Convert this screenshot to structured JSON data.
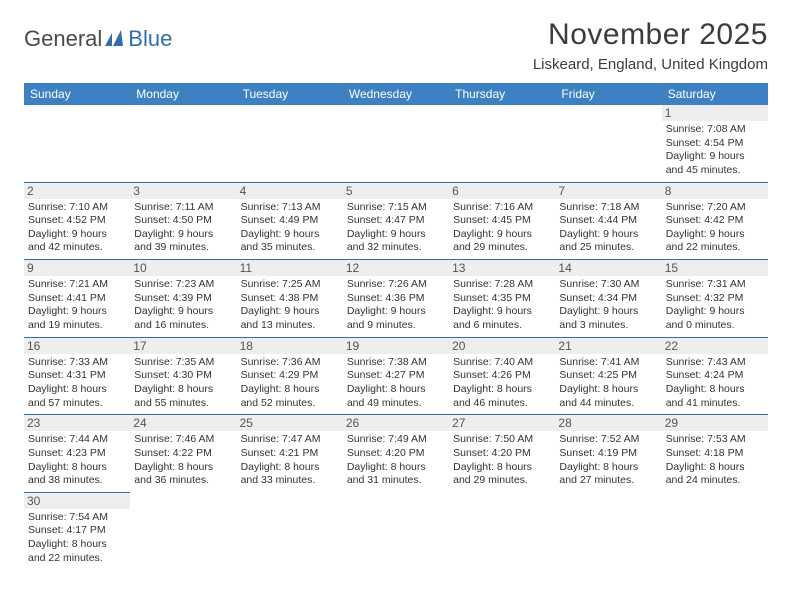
{
  "logo": {
    "part1": "General",
    "part2": "Blue"
  },
  "title": "November 2025",
  "location": "Liskeard, England, United Kingdom",
  "colors": {
    "header_bg": "#3d81c2",
    "header_text": "#ffffff",
    "border": "#2f6fa8",
    "daynum_bg": "#eeeeee",
    "text": "#333333"
  },
  "weekdays": [
    "Sunday",
    "Monday",
    "Tuesday",
    "Wednesday",
    "Thursday",
    "Friday",
    "Saturday"
  ],
  "weeks": [
    [
      {
        "n": "",
        "sr": "",
        "ss": "",
        "dl1": "",
        "dl2": ""
      },
      {
        "n": "",
        "sr": "",
        "ss": "",
        "dl1": "",
        "dl2": ""
      },
      {
        "n": "",
        "sr": "",
        "ss": "",
        "dl1": "",
        "dl2": ""
      },
      {
        "n": "",
        "sr": "",
        "ss": "",
        "dl1": "",
        "dl2": ""
      },
      {
        "n": "",
        "sr": "",
        "ss": "",
        "dl1": "",
        "dl2": ""
      },
      {
        "n": "",
        "sr": "",
        "ss": "",
        "dl1": "",
        "dl2": ""
      },
      {
        "n": "1",
        "sr": "Sunrise: 7:08 AM",
        "ss": "Sunset: 4:54 PM",
        "dl1": "Daylight: 9 hours",
        "dl2": "and 45 minutes."
      }
    ],
    [
      {
        "n": "2",
        "sr": "Sunrise: 7:10 AM",
        "ss": "Sunset: 4:52 PM",
        "dl1": "Daylight: 9 hours",
        "dl2": "and 42 minutes."
      },
      {
        "n": "3",
        "sr": "Sunrise: 7:11 AM",
        "ss": "Sunset: 4:50 PM",
        "dl1": "Daylight: 9 hours",
        "dl2": "and 39 minutes."
      },
      {
        "n": "4",
        "sr": "Sunrise: 7:13 AM",
        "ss": "Sunset: 4:49 PM",
        "dl1": "Daylight: 9 hours",
        "dl2": "and 35 minutes."
      },
      {
        "n": "5",
        "sr": "Sunrise: 7:15 AM",
        "ss": "Sunset: 4:47 PM",
        "dl1": "Daylight: 9 hours",
        "dl2": "and 32 minutes."
      },
      {
        "n": "6",
        "sr": "Sunrise: 7:16 AM",
        "ss": "Sunset: 4:45 PM",
        "dl1": "Daylight: 9 hours",
        "dl2": "and 29 minutes."
      },
      {
        "n": "7",
        "sr": "Sunrise: 7:18 AM",
        "ss": "Sunset: 4:44 PM",
        "dl1": "Daylight: 9 hours",
        "dl2": "and 25 minutes."
      },
      {
        "n": "8",
        "sr": "Sunrise: 7:20 AM",
        "ss": "Sunset: 4:42 PM",
        "dl1": "Daylight: 9 hours",
        "dl2": "and 22 minutes."
      }
    ],
    [
      {
        "n": "9",
        "sr": "Sunrise: 7:21 AM",
        "ss": "Sunset: 4:41 PM",
        "dl1": "Daylight: 9 hours",
        "dl2": "and 19 minutes."
      },
      {
        "n": "10",
        "sr": "Sunrise: 7:23 AM",
        "ss": "Sunset: 4:39 PM",
        "dl1": "Daylight: 9 hours",
        "dl2": "and 16 minutes."
      },
      {
        "n": "11",
        "sr": "Sunrise: 7:25 AM",
        "ss": "Sunset: 4:38 PM",
        "dl1": "Daylight: 9 hours",
        "dl2": "and 13 minutes."
      },
      {
        "n": "12",
        "sr": "Sunrise: 7:26 AM",
        "ss": "Sunset: 4:36 PM",
        "dl1": "Daylight: 9 hours",
        "dl2": "and 9 minutes."
      },
      {
        "n": "13",
        "sr": "Sunrise: 7:28 AM",
        "ss": "Sunset: 4:35 PM",
        "dl1": "Daylight: 9 hours",
        "dl2": "and 6 minutes."
      },
      {
        "n": "14",
        "sr": "Sunrise: 7:30 AM",
        "ss": "Sunset: 4:34 PM",
        "dl1": "Daylight: 9 hours",
        "dl2": "and 3 minutes."
      },
      {
        "n": "15",
        "sr": "Sunrise: 7:31 AM",
        "ss": "Sunset: 4:32 PM",
        "dl1": "Daylight: 9 hours",
        "dl2": "and 0 minutes."
      }
    ],
    [
      {
        "n": "16",
        "sr": "Sunrise: 7:33 AM",
        "ss": "Sunset: 4:31 PM",
        "dl1": "Daylight: 8 hours",
        "dl2": "and 57 minutes."
      },
      {
        "n": "17",
        "sr": "Sunrise: 7:35 AM",
        "ss": "Sunset: 4:30 PM",
        "dl1": "Daylight: 8 hours",
        "dl2": "and 55 minutes."
      },
      {
        "n": "18",
        "sr": "Sunrise: 7:36 AM",
        "ss": "Sunset: 4:29 PM",
        "dl1": "Daylight: 8 hours",
        "dl2": "and 52 minutes."
      },
      {
        "n": "19",
        "sr": "Sunrise: 7:38 AM",
        "ss": "Sunset: 4:27 PM",
        "dl1": "Daylight: 8 hours",
        "dl2": "and 49 minutes."
      },
      {
        "n": "20",
        "sr": "Sunrise: 7:40 AM",
        "ss": "Sunset: 4:26 PM",
        "dl1": "Daylight: 8 hours",
        "dl2": "and 46 minutes."
      },
      {
        "n": "21",
        "sr": "Sunrise: 7:41 AM",
        "ss": "Sunset: 4:25 PM",
        "dl1": "Daylight: 8 hours",
        "dl2": "and 44 minutes."
      },
      {
        "n": "22",
        "sr": "Sunrise: 7:43 AM",
        "ss": "Sunset: 4:24 PM",
        "dl1": "Daylight: 8 hours",
        "dl2": "and 41 minutes."
      }
    ],
    [
      {
        "n": "23",
        "sr": "Sunrise: 7:44 AM",
        "ss": "Sunset: 4:23 PM",
        "dl1": "Daylight: 8 hours",
        "dl2": "and 38 minutes."
      },
      {
        "n": "24",
        "sr": "Sunrise: 7:46 AM",
        "ss": "Sunset: 4:22 PM",
        "dl1": "Daylight: 8 hours",
        "dl2": "and 36 minutes."
      },
      {
        "n": "25",
        "sr": "Sunrise: 7:47 AM",
        "ss": "Sunset: 4:21 PM",
        "dl1": "Daylight: 8 hours",
        "dl2": "and 33 minutes."
      },
      {
        "n": "26",
        "sr": "Sunrise: 7:49 AM",
        "ss": "Sunset: 4:20 PM",
        "dl1": "Daylight: 8 hours",
        "dl2": "and 31 minutes."
      },
      {
        "n": "27",
        "sr": "Sunrise: 7:50 AM",
        "ss": "Sunset: 4:20 PM",
        "dl1": "Daylight: 8 hours",
        "dl2": "and 29 minutes."
      },
      {
        "n": "28",
        "sr": "Sunrise: 7:52 AM",
        "ss": "Sunset: 4:19 PM",
        "dl1": "Daylight: 8 hours",
        "dl2": "and 27 minutes."
      },
      {
        "n": "29",
        "sr": "Sunrise: 7:53 AM",
        "ss": "Sunset: 4:18 PM",
        "dl1": "Daylight: 8 hours",
        "dl2": "and 24 minutes."
      }
    ],
    [
      {
        "n": "30",
        "sr": "Sunrise: 7:54 AM",
        "ss": "Sunset: 4:17 PM",
        "dl1": "Daylight: 8 hours",
        "dl2": "and 22 minutes."
      },
      {
        "n": "",
        "sr": "",
        "ss": "",
        "dl1": "",
        "dl2": ""
      },
      {
        "n": "",
        "sr": "",
        "ss": "",
        "dl1": "",
        "dl2": ""
      },
      {
        "n": "",
        "sr": "",
        "ss": "",
        "dl1": "",
        "dl2": ""
      },
      {
        "n": "",
        "sr": "",
        "ss": "",
        "dl1": "",
        "dl2": ""
      },
      {
        "n": "",
        "sr": "",
        "ss": "",
        "dl1": "",
        "dl2": ""
      },
      {
        "n": "",
        "sr": "",
        "ss": "",
        "dl1": "",
        "dl2": ""
      }
    ]
  ]
}
